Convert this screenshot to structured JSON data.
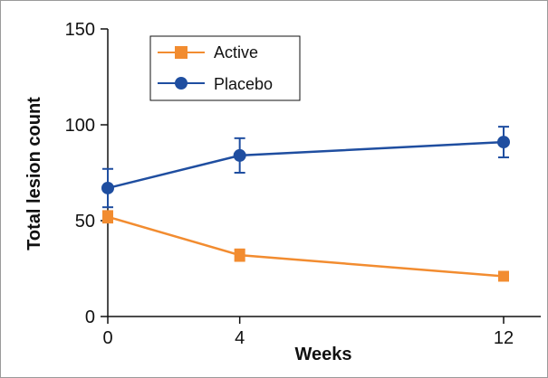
{
  "chart_data": {
    "type": "line",
    "xlabel": "Weeks",
    "ylabel": "Total lesion count",
    "x": [
      0,
      4,
      12
    ],
    "xticks": [
      "0",
      "4",
      "12"
    ],
    "yticks": [
      "0",
      "50",
      "100",
      "150"
    ],
    "xlim": [
      0,
      13
    ],
    "ylim": [
      0,
      150
    ],
    "grid": false,
    "legend_position": "top-left",
    "series": [
      {
        "name": "Active",
        "color": "#f28c30",
        "marker": "square",
        "values": [
          52,
          32,
          21
        ],
        "error": [
          3,
          3,
          2
        ]
      },
      {
        "name": "Placebo",
        "color": "#1f4ea0",
        "marker": "circle",
        "values": [
          67,
          84,
          91
        ],
        "error": [
          10,
          9,
          8
        ]
      }
    ]
  }
}
